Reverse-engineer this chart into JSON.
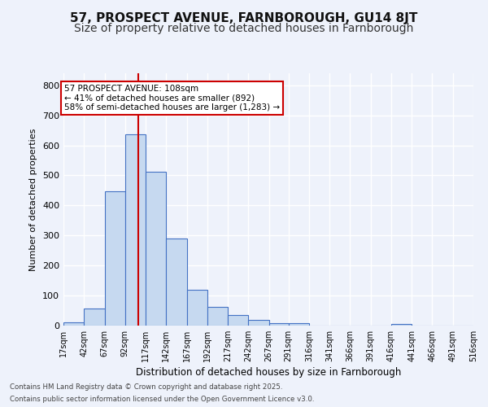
{
  "title1": "57, PROSPECT AVENUE, FARNBOROUGH, GU14 8JT",
  "title2": "Size of property relative to detached houses in Farnborough",
  "xlabel": "Distribution of detached houses by size in Farnborough",
  "ylabel": "Number of detached properties",
  "bin_edges": [
    17,
    42,
    67,
    92,
    117,
    142,
    167,
    192,
    217,
    242,
    267,
    291,
    316,
    341,
    366,
    391,
    416,
    441,
    466,
    491,
    516
  ],
  "bar_heights": [
    10,
    57,
    447,
    637,
    512,
    291,
    120,
    62,
    35,
    20,
    9,
    7,
    0,
    0,
    0,
    0,
    5,
    0,
    0,
    0
  ],
  "bar_color": "#c6d9f0",
  "bar_edge_color": "#4472c4",
  "property_size": 108,
  "red_line_color": "#cc0000",
  "annotation_text": "57 PROSPECT AVENUE: 108sqm\n← 41% of detached houses are smaller (892)\n58% of semi-detached houses are larger (1,283) →",
  "annotation_box_color": "#ffffff",
  "annotation_border_color": "#cc0000",
  "yticks": [
    0,
    100,
    200,
    300,
    400,
    500,
    600,
    700,
    800
  ],
  "ylim": [
    0,
    840
  ],
  "footer_line1": "Contains HM Land Registry data © Crown copyright and database right 2025.",
  "footer_line2": "Contains public sector information licensed under the Open Government Licence v3.0.",
  "bg_color": "#eef2fb",
  "grid_color": "#ffffff",
  "title_fontsize": 11,
  "subtitle_fontsize": 10
}
